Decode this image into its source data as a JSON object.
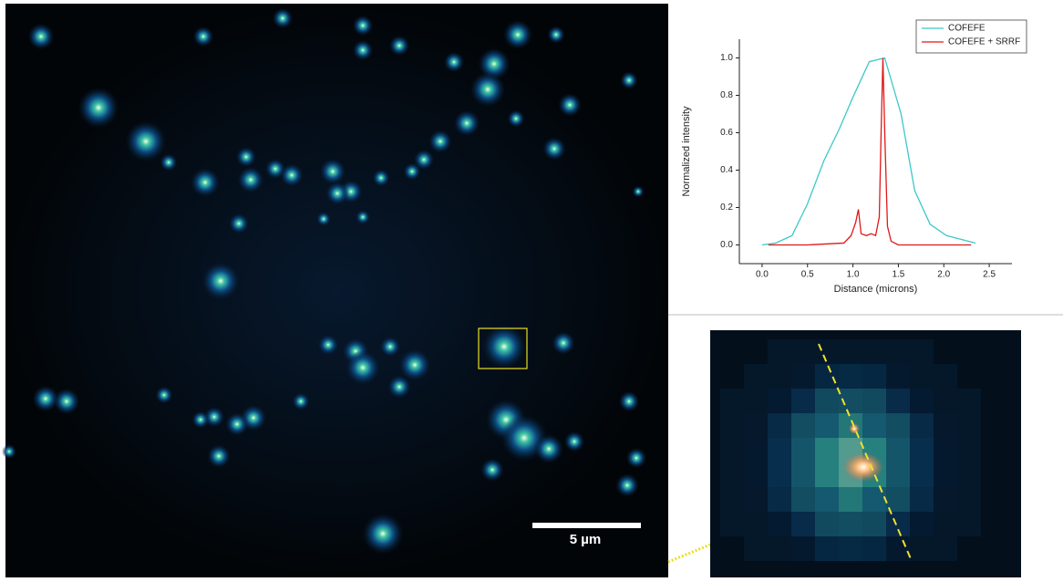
{
  "chart_data": {
    "type": "line",
    "xlabel": "Distance (microns)",
    "ylabel": "Normalized intensity",
    "xlim": [
      -0.25,
      2.75
    ],
    "ylim": [
      -0.1,
      1.1
    ],
    "xticks": [
      {
        "value": 0,
        "label": "0.0"
      },
      0.5,
      {
        "value": 1,
        "label": "1.0"
      },
      1.5,
      {
        "value": 2,
        "label": "2.0"
      },
      2.5
    ],
    "yticks": [
      {
        "value": 0,
        "label": "0.0"
      },
      0.2,
      0.4,
      0.6,
      0.8,
      {
        "value": 1,
        "label": "1.0"
      }
    ],
    "legend": "top-right",
    "series": [
      {
        "name": "COFEFE",
        "color": "#3cc8c8",
        "x": [
          0,
          0.15,
          0.33,
          0.5,
          0.68,
          0.85,
          1.0,
          1.18,
          1.35,
          1.53,
          1.68,
          1.85,
          2.03,
          2.35
        ],
        "values": [
          0,
          0.01,
          0.05,
          0.22,
          0.45,
          0.62,
          0.79,
          0.98,
          1.0,
          0.7,
          0.29,
          0.11,
          0.05,
          0.01
        ]
      },
      {
        "name": "COFEFE + SRRF",
        "color": "#e01818",
        "x": [
          0.07,
          0.5,
          0.9,
          0.98,
          1.03,
          1.06,
          1.09,
          1.15,
          1.2,
          1.25,
          1.29,
          1.31,
          1.33,
          1.35,
          1.38,
          1.42,
          1.5,
          2.0,
          2.3
        ],
        "values": [
          0,
          0,
          0.01,
          0.05,
          0.12,
          0.19,
          0.06,
          0.05,
          0.06,
          0.05,
          0.15,
          0.6,
          1.0,
          0.6,
          0.1,
          0.02,
          0,
          0,
          0
        ]
      }
    ]
  },
  "scale_bar": {
    "label": "5 µm"
  }
}
